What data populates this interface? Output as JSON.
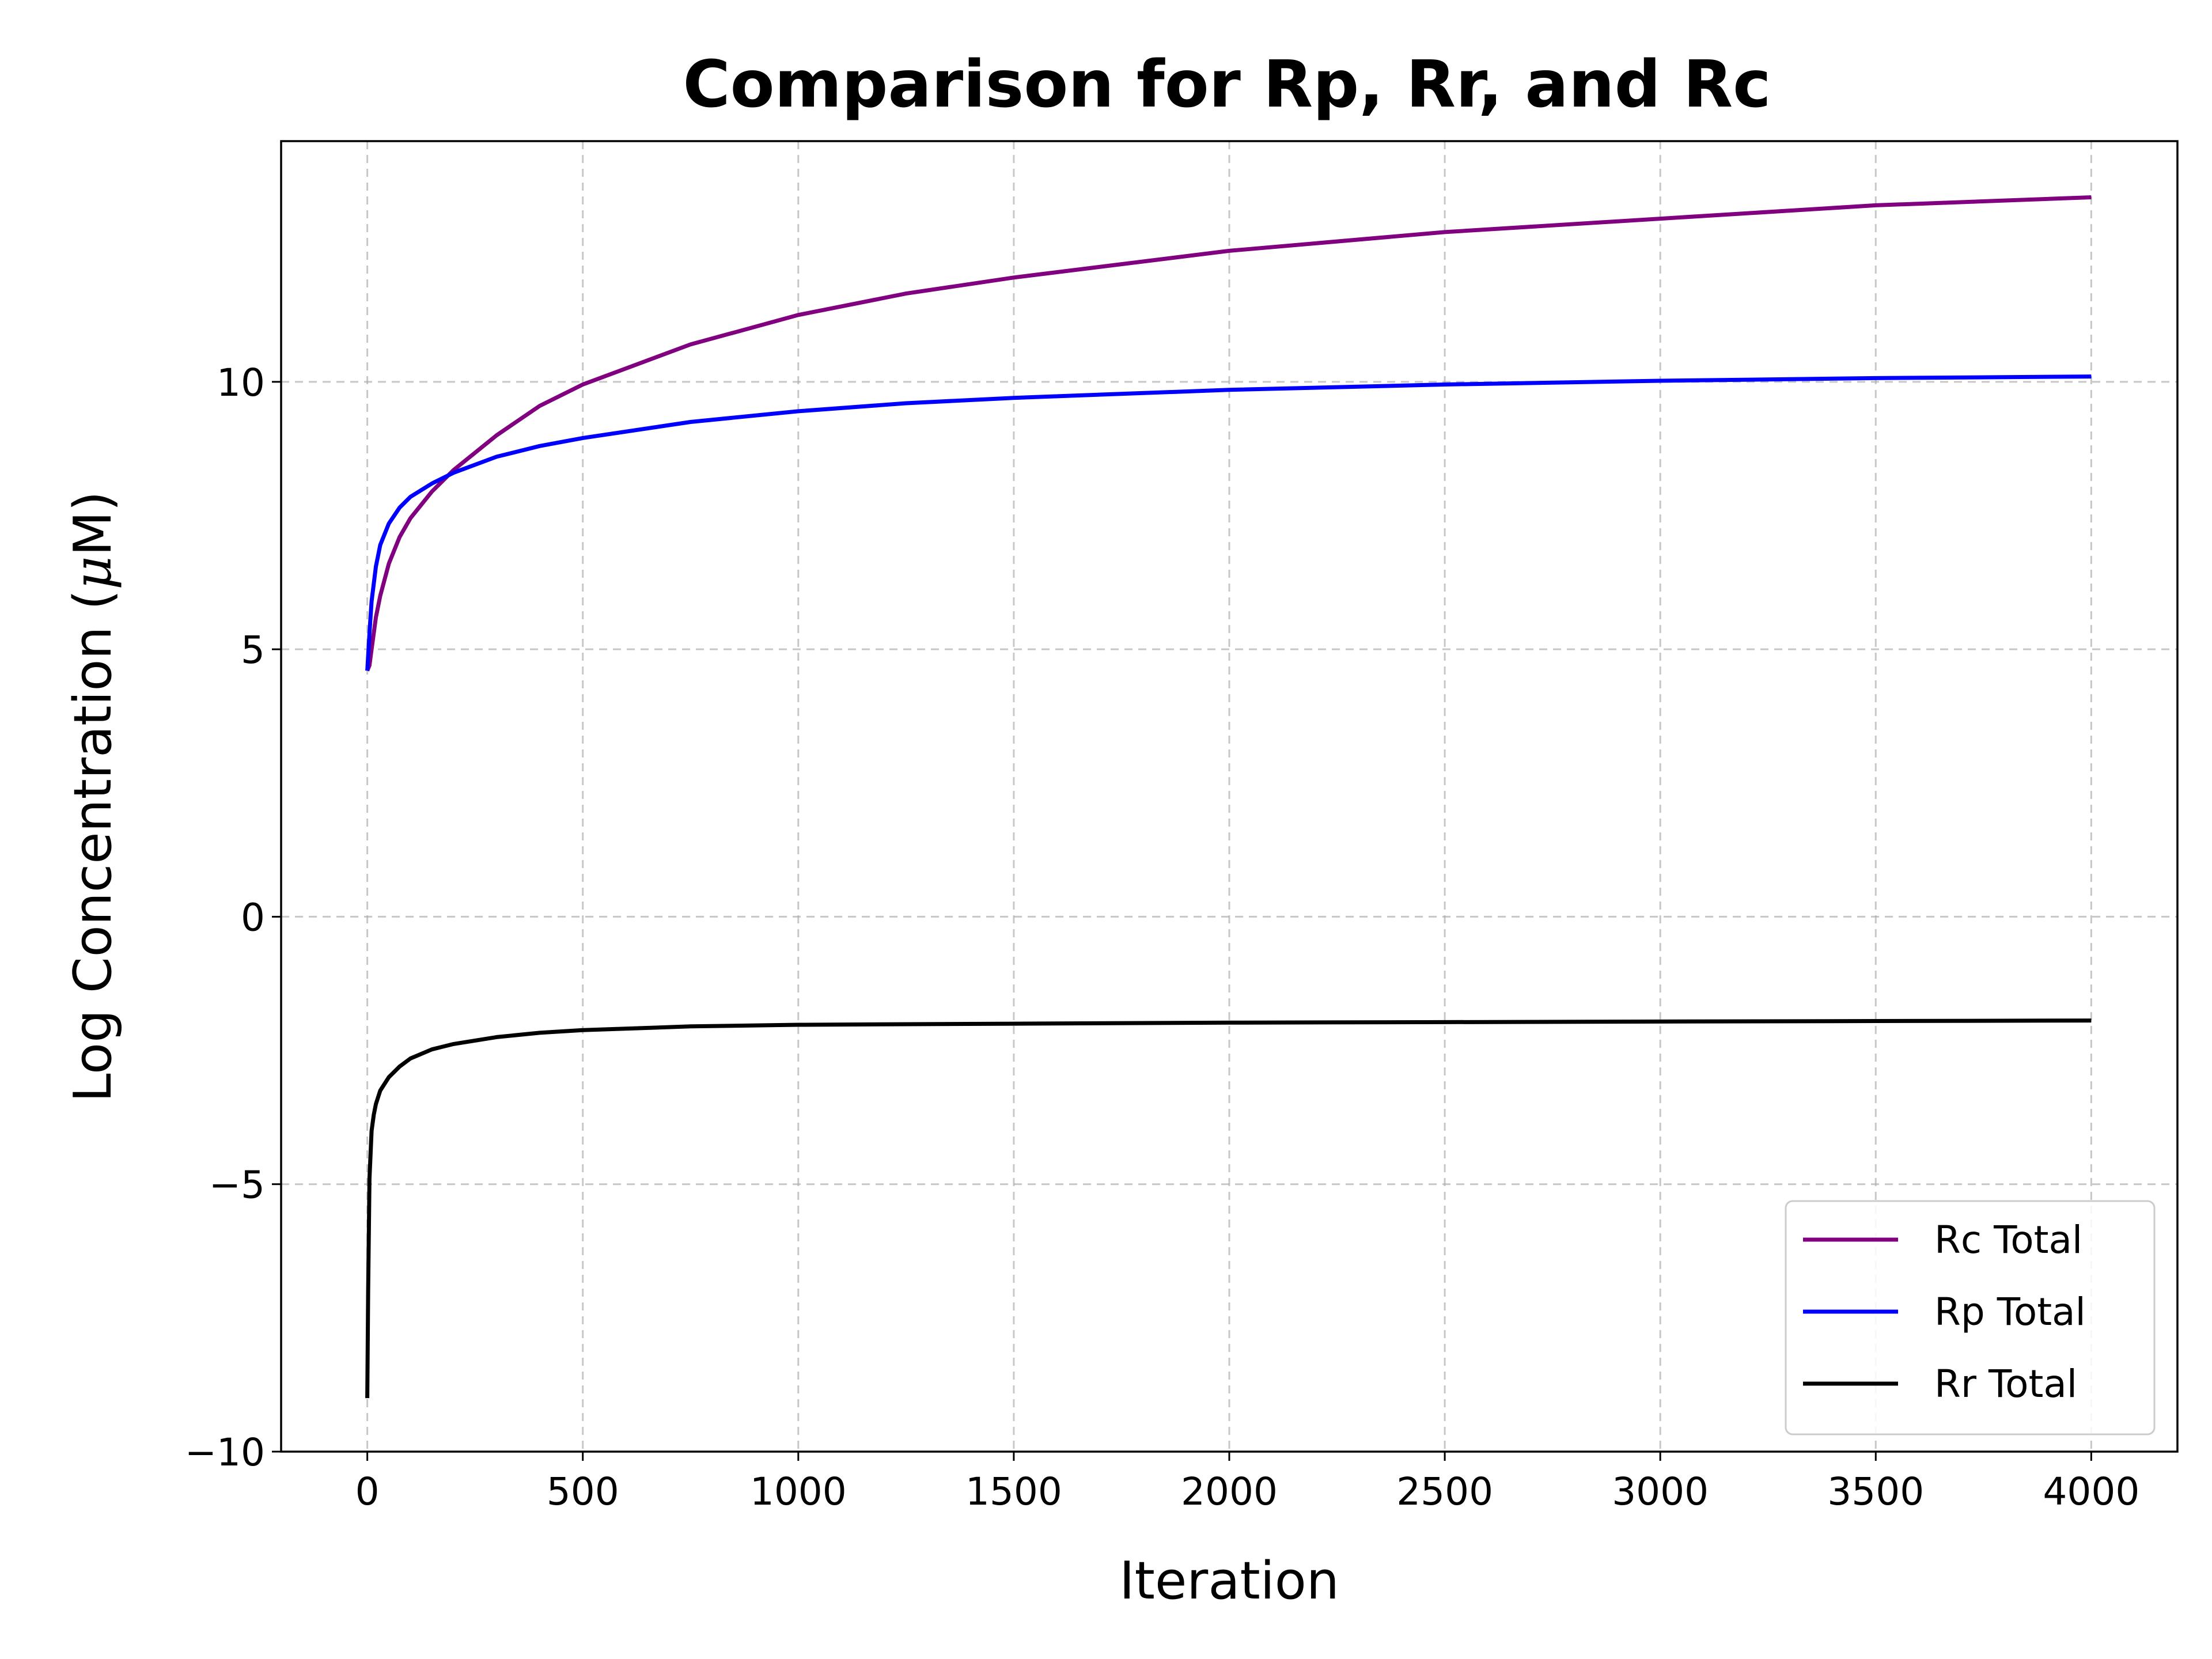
{
  "chart_data": {
    "type": "line",
    "title": "Comparison for Rp, Rr, and Rc",
    "xlabel": "Iteration",
    "ylabel_prefix": "Log Concentration (",
    "ylabel_mu": "μ",
    "ylabel_suffix": "M)",
    "xlim": [
      -200,
      4200
    ],
    "ylim": [
      -10,
      14.5
    ],
    "xticks": [
      0,
      500,
      1000,
      1500,
      2000,
      2500,
      3000,
      3500,
      4000
    ],
    "xtick_labels": [
      "0",
      "500",
      "1000",
      "1500",
      "2000",
      "2500",
      "3000",
      "3500",
      "4000"
    ],
    "yticks": [
      -10,
      -5,
      0,
      5,
      10
    ],
    "ytick_labels": [
      "−10",
      "−5",
      "0",
      "5",
      "10"
    ],
    "grid": true,
    "legend_position": "lower-right",
    "series": [
      {
        "name": "Rc Total",
        "color": "#800080",
        "x": [
          0,
          5,
          10,
          20,
          30,
          50,
          75,
          100,
          150,
          200,
          300,
          400,
          500,
          750,
          1000,
          1250,
          1500,
          2000,
          2500,
          3000,
          3500,
          4000
        ],
        "y": [
          4.6,
          4.7,
          5.0,
          5.6,
          6.0,
          6.6,
          7.1,
          7.45,
          7.95,
          8.35,
          9.0,
          9.55,
          9.95,
          10.7,
          11.25,
          11.65,
          11.95,
          12.45,
          12.8,
          13.05,
          13.3,
          13.45
        ]
      },
      {
        "name": "Rp Total",
        "color": "#0000ff",
        "x": [
          0,
          5,
          10,
          20,
          30,
          50,
          75,
          100,
          150,
          200,
          300,
          400,
          500,
          750,
          1000,
          1250,
          1500,
          2000,
          2500,
          3000,
          3500,
          4000
        ],
        "y": [
          4.6,
          5.3,
          5.9,
          6.55,
          6.95,
          7.35,
          7.65,
          7.85,
          8.1,
          8.3,
          8.6,
          8.8,
          8.95,
          9.25,
          9.45,
          9.6,
          9.7,
          9.85,
          9.95,
          10.02,
          10.07,
          10.1
        ]
      },
      {
        "name": "Rr Total",
        "color": "#000000",
        "x": [
          0,
          2,
          5,
          10,
          15,
          20,
          30,
          50,
          75,
          100,
          150,
          200,
          300,
          400,
          500,
          750,
          1000,
          1500,
          2000,
          2500,
          3000,
          3500,
          4000
        ],
        "y": [
          -9.0,
          -7.0,
          -4.9,
          -4.0,
          -3.7,
          -3.5,
          -3.25,
          -3.0,
          -2.8,
          -2.65,
          -2.48,
          -2.38,
          -2.25,
          -2.17,
          -2.12,
          -2.05,
          -2.02,
          -2.0,
          -1.98,
          -1.97,
          -1.96,
          -1.95,
          -1.94
        ]
      }
    ]
  }
}
